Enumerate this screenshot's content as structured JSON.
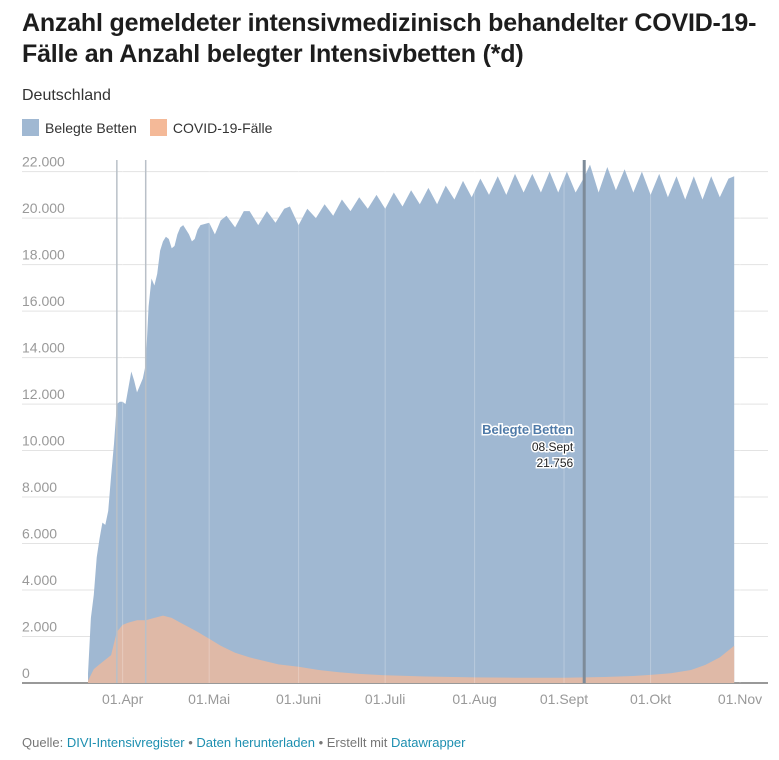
{
  "header": {
    "title": "Anzahl gemeldeter intensivmedizinisch behandelter COVID-19-Fälle an Anzahl belegter Intensivbetten (*d)",
    "subtitle": "Deutschland"
  },
  "legend": [
    {
      "label": "Belegte Betten",
      "color": "#a0b8d2"
    },
    {
      "label": "COVID-19-Fälle",
      "color": "#f4b998"
    }
  ],
  "tooltip": {
    "series": "Belegte Betten",
    "date": "08.Sept",
    "value": "21.756"
  },
  "footer": {
    "source_label": "Quelle:",
    "source_link": "DIVI-Intensivregister",
    "download_link": "Daten herunterladen",
    "created_label": "Erstellt mit",
    "created_link": "Datawrapper",
    "separator": "•"
  },
  "chart_data": {
    "type": "area",
    "title": "Anzahl gemeldeter intensivmedizinisch behandelter COVID-19-Fälle an Anzahl belegter Intensivbetten (*d)",
    "subtitle": "Deutschland",
    "x_start": "2020-03-20",
    "x_range": [
      "2020-03-20",
      "2020-11-01"
    ],
    "ylim": [
      0,
      22500
    ],
    "y_ticks": [
      0,
      2000,
      4000,
      6000,
      8000,
      10000,
      12000,
      14000,
      16000,
      18000,
      20000,
      22000
    ],
    "y_tick_labels": [
      "0",
      "2.000",
      "4.000",
      "6.000",
      "8.000",
      "10.000",
      "12.000",
      "14.000",
      "16.000",
      "18.000",
      "20.000",
      "22.000"
    ],
    "x_ticks": [
      "2020-04-01",
      "2020-05-01",
      "2020-06-01",
      "2020-07-01",
      "2020-08-01",
      "2020-09-01",
      "2020-10-01",
      "2020-11-01"
    ],
    "x_tick_labels": [
      "01.Apr",
      "01.Mai",
      "01.Juni",
      "01.Juli",
      "01.Aug",
      "01.Sept",
      "01.Okt",
      "01.Nov"
    ],
    "grid": true,
    "legend_position": "top-left",
    "series": [
      {
        "name": "Belegte Betten",
        "color": "#a0b8d2",
        "points": [
          [
            "2020-03-20",
            400
          ],
          [
            "2020-03-21",
            2800
          ],
          [
            "2020-03-22",
            3800
          ],
          [
            "2020-03-23",
            5400
          ],
          [
            "2020-03-24",
            6200
          ],
          [
            "2020-03-25",
            6900
          ],
          [
            "2020-03-26",
            6800
          ],
          [
            "2020-03-27",
            7400
          ],
          [
            "2020-03-28",
            8900
          ],
          [
            "2020-03-29",
            10300
          ],
          [
            "2020-03-30",
            12000
          ],
          [
            "2020-03-31",
            12100
          ],
          [
            "2020-04-01",
            12100
          ],
          [
            "2020-04-02",
            12000
          ],
          [
            "2020-04-03",
            12700
          ],
          [
            "2020-04-04",
            13400
          ],
          [
            "2020-04-05",
            13000
          ],
          [
            "2020-04-06",
            12500
          ],
          [
            "2020-04-07",
            12800
          ],
          [
            "2020-04-08",
            13100
          ],
          [
            "2020-04-09",
            13700
          ],
          [
            "2020-04-10",
            16200
          ],
          [
            "2020-04-11",
            17400
          ],
          [
            "2020-04-12",
            17100
          ],
          [
            "2020-04-13",
            17600
          ],
          [
            "2020-04-14",
            18600
          ],
          [
            "2020-04-15",
            19000
          ],
          [
            "2020-04-16",
            19200
          ],
          [
            "2020-04-17",
            19100
          ],
          [
            "2020-04-18",
            18700
          ],
          [
            "2020-04-19",
            18800
          ],
          [
            "2020-04-20",
            19300
          ],
          [
            "2020-04-21",
            19600
          ],
          [
            "2020-04-22",
            19700
          ],
          [
            "2020-04-23",
            19500
          ],
          [
            "2020-04-24",
            19300
          ],
          [
            "2020-04-25",
            19000
          ],
          [
            "2020-04-26",
            19100
          ],
          [
            "2020-04-27",
            19500
          ],
          [
            "2020-04-28",
            19700
          ],
          [
            "2020-05-01",
            19800
          ],
          [
            "2020-05-03",
            19300
          ],
          [
            "2020-05-05",
            19900
          ],
          [
            "2020-05-07",
            20100
          ],
          [
            "2020-05-10",
            19600
          ],
          [
            "2020-05-13",
            20300
          ],
          [
            "2020-05-15",
            20300
          ],
          [
            "2020-05-18",
            19700
          ],
          [
            "2020-05-21",
            20300
          ],
          [
            "2020-05-24",
            19800
          ],
          [
            "2020-05-27",
            20400
          ],
          [
            "2020-05-29",
            20500
          ],
          [
            "2020-06-01",
            19700
          ],
          [
            "2020-06-04",
            20400
          ],
          [
            "2020-06-07",
            20000
          ],
          [
            "2020-06-10",
            20600
          ],
          [
            "2020-06-13",
            20100
          ],
          [
            "2020-06-16",
            20800
          ],
          [
            "2020-06-19",
            20300
          ],
          [
            "2020-06-22",
            20900
          ],
          [
            "2020-06-25",
            20400
          ],
          [
            "2020-06-28",
            21000
          ],
          [
            "2020-07-01",
            20400
          ],
          [
            "2020-07-04",
            21100
          ],
          [
            "2020-07-07",
            20500
          ],
          [
            "2020-07-10",
            21200
          ],
          [
            "2020-07-13",
            20600
          ],
          [
            "2020-07-16",
            21300
          ],
          [
            "2020-07-19",
            20600
          ],
          [
            "2020-07-22",
            21400
          ],
          [
            "2020-07-25",
            20800
          ],
          [
            "2020-07-28",
            21600
          ],
          [
            "2020-07-31",
            20900
          ],
          [
            "2020-08-03",
            21700
          ],
          [
            "2020-08-06",
            21000
          ],
          [
            "2020-08-09",
            21800
          ],
          [
            "2020-08-12",
            21000
          ],
          [
            "2020-08-15",
            21900
          ],
          [
            "2020-08-18",
            21100
          ],
          [
            "2020-08-21",
            21900
          ],
          [
            "2020-08-24",
            21100
          ],
          [
            "2020-08-27",
            22000
          ],
          [
            "2020-08-30",
            21100
          ],
          [
            "2020-09-02",
            22000
          ],
          [
            "2020-09-05",
            21100
          ],
          [
            "2020-09-08",
            21756
          ],
          [
            "2020-09-10",
            22300
          ],
          [
            "2020-09-13",
            21100
          ],
          [
            "2020-09-16",
            22200
          ],
          [
            "2020-09-19",
            21200
          ],
          [
            "2020-09-22",
            22100
          ],
          [
            "2020-09-25",
            21100
          ],
          [
            "2020-09-28",
            22000
          ],
          [
            "2020-10-01",
            21000
          ],
          [
            "2020-10-04",
            21900
          ],
          [
            "2020-10-07",
            20900
          ],
          [
            "2020-10-10",
            21800
          ],
          [
            "2020-10-13",
            20800
          ],
          [
            "2020-10-16",
            21800
          ],
          [
            "2020-10-19",
            20800
          ],
          [
            "2020-10-22",
            21800
          ],
          [
            "2020-10-25",
            20900
          ],
          [
            "2020-10-28",
            21700
          ],
          [
            "2020-10-30",
            21800
          ]
        ]
      },
      {
        "name": "COVID-19-Fälle",
        "color": "#f4b998",
        "points": [
          [
            "2020-03-20",
            100
          ],
          [
            "2020-03-22",
            600
          ],
          [
            "2020-03-24",
            800
          ],
          [
            "2020-03-26",
            1000
          ],
          [
            "2020-03-28",
            1200
          ],
          [
            "2020-03-30",
            2200
          ],
          [
            "2020-04-01",
            2500
          ],
          [
            "2020-04-03",
            2600
          ],
          [
            "2020-04-06",
            2700
          ],
          [
            "2020-04-09",
            2700
          ],
          [
            "2020-04-12",
            2800
          ],
          [
            "2020-04-15",
            2900
          ],
          [
            "2020-04-18",
            2800
          ],
          [
            "2020-04-21",
            2600
          ],
          [
            "2020-04-24",
            2400
          ],
          [
            "2020-04-27",
            2200
          ],
          [
            "2020-05-01",
            1900
          ],
          [
            "2020-05-05",
            1600
          ],
          [
            "2020-05-10",
            1300
          ],
          [
            "2020-05-15",
            1100
          ],
          [
            "2020-05-20",
            950
          ],
          [
            "2020-05-25",
            800
          ],
          [
            "2020-06-01",
            700
          ],
          [
            "2020-06-08",
            560
          ],
          [
            "2020-06-15",
            460
          ],
          [
            "2020-06-22",
            390
          ],
          [
            "2020-07-01",
            330
          ],
          [
            "2020-07-15",
            280
          ],
          [
            "2020-08-01",
            240
          ],
          [
            "2020-08-15",
            230
          ],
          [
            "2020-09-01",
            230
          ],
          [
            "2020-09-15",
            260
          ],
          [
            "2020-09-25",
            300
          ],
          [
            "2020-10-01",
            350
          ],
          [
            "2020-10-08",
            420
          ],
          [
            "2020-10-15",
            560
          ],
          [
            "2020-10-20",
            780
          ],
          [
            "2020-10-25",
            1100
          ],
          [
            "2020-10-30",
            1600
          ]
        ]
      }
    ],
    "highlight": {
      "series": "Belegte Betten",
      "date": "2020-09-08",
      "value": 21756
    },
    "reference_lines": [
      "2020-03-30",
      "2020-04-09",
      "2020-09-08"
    ]
  }
}
